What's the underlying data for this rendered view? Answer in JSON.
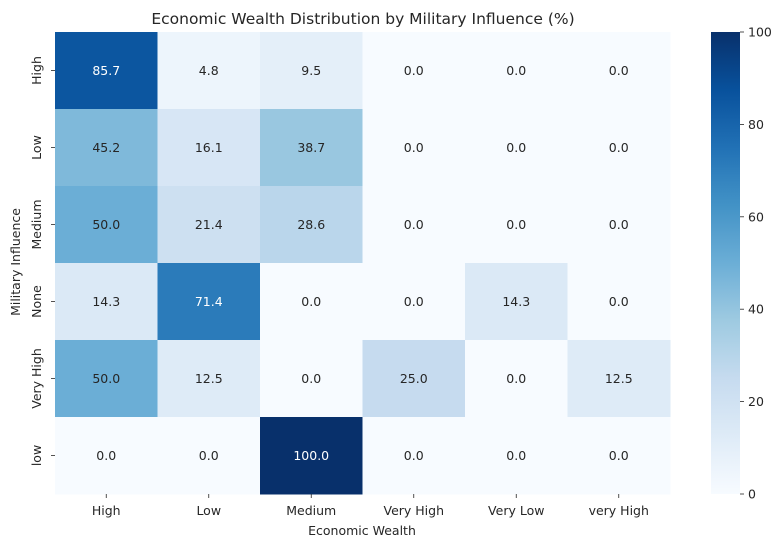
{
  "chart_data": {
    "type": "heatmap",
    "title": "Economic Wealth Distribution by Military Influence (%)",
    "xlabel": "Economic Wealth",
    "ylabel": "Military Influence",
    "x_categories": [
      "High",
      "Low",
      "Medium",
      "Very High",
      "Very Low",
      "very High"
    ],
    "y_categories": [
      "High",
      "Low",
      "Medium",
      "None",
      "Very High",
      "low"
    ],
    "values": [
      [
        85.7,
        4.8,
        9.5,
        0.0,
        0.0,
        0.0
      ],
      [
        45.2,
        16.1,
        38.7,
        0.0,
        0.0,
        0.0
      ],
      [
        50.0,
        21.4,
        28.6,
        0.0,
        0.0,
        0.0
      ],
      [
        14.3,
        71.4,
        0.0,
        0.0,
        14.3,
        0.0
      ],
      [
        50.0,
        12.5,
        0.0,
        25.0,
        0.0,
        12.5
      ],
      [
        0.0,
        0.0,
        100.0,
        0.0,
        0.0,
        0.0
      ]
    ],
    "value_format": "0.1f",
    "colormap": "Blues",
    "vmin": 0,
    "vmax": 100,
    "colorbar_ticks": [
      0,
      20,
      40,
      60,
      80,
      100
    ],
    "grid": false
  }
}
